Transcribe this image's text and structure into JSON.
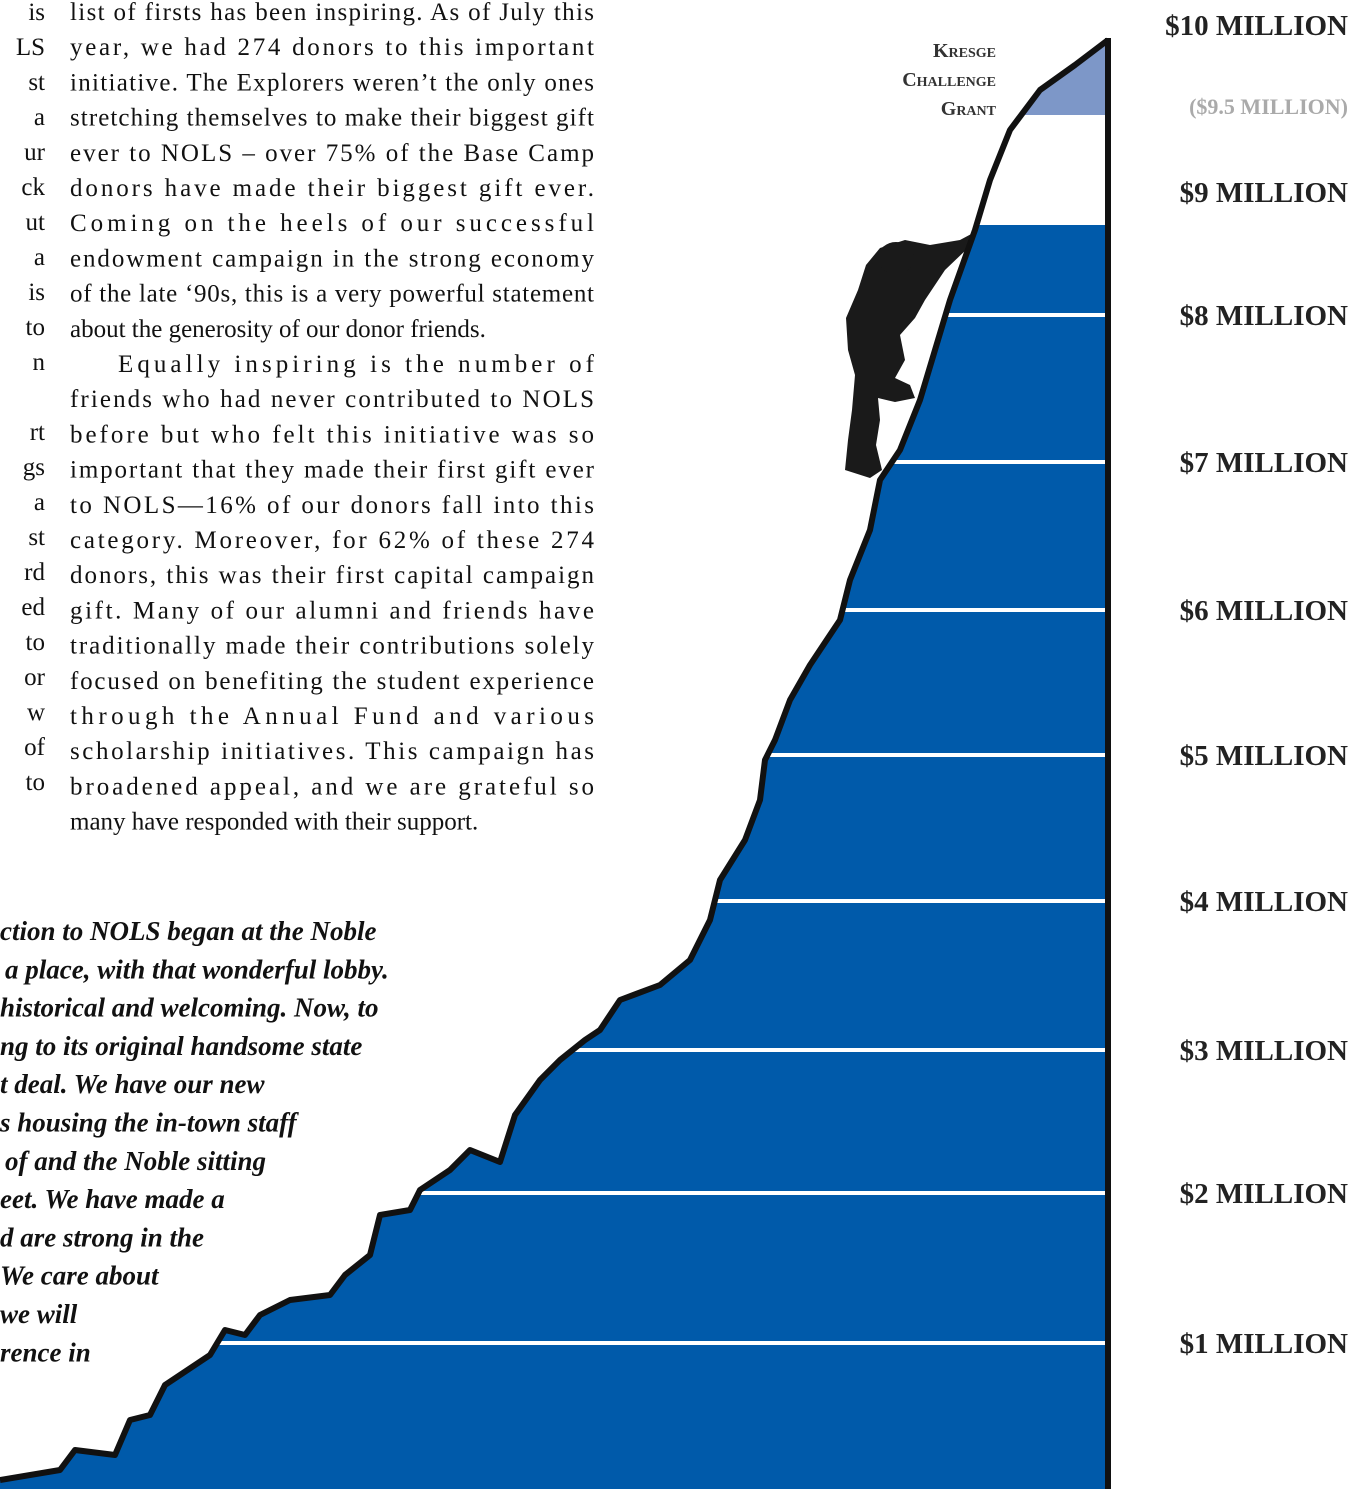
{
  "left_column_fragments": [
    "is",
    "LS",
    "st",
    "a",
    "ur",
    "ck",
    "ut",
    "a",
    "is",
    "to",
    "n",
    "rt",
    "gs",
    "a",
    "st",
    "rd",
    "ed",
    "to",
    "or",
    "w",
    "of",
    "to"
  ],
  "main_column": {
    "paragraphs": [
      [
        "list of firsts has been inspiring. As of July this",
        "year, we had 274 donors to this important",
        "initiative.  The Explorers weren’t the only ones",
        "stretching themselves to make their biggest gift",
        "ever to NOLS – over 75% of the Base Camp",
        "donors have made their biggest gift ever.",
        "Coming on the heels of our successful",
        "endowment campaign in the strong economy",
        "of the late ‘90s, this is a very powerful statement",
        "about the generosity of our donor friends."
      ],
      [
        "Equally inspiring is the number of",
        "friends who had never contributed to NOLS",
        "before but who felt this initiative was so",
        "important that they made their first gift ever",
        "to NOLS—16% of our donors fall into this",
        "category. Moreover, for 62% of these 274",
        "donors, this was their first capital campaign",
        "gift. Many of our alumni and friends have",
        "traditionally made their contributions solely",
        "focused on benefiting the student experience",
        "through the Annual Fund and various",
        "scholarship initiatives. This campaign has",
        "broadened appeal, and we are grateful so",
        "many have responded with their support."
      ]
    ]
  },
  "quote": {
    "lines": [
      "ction to NOLS began at the Noble",
      "a place, with that wonderful lobby.",
      "historical and welcoming. Now, to",
      "ng to its original handsome state",
      "t deal. We have our new",
      "s housing the in-town staff",
      "of and the Noble sitting",
      "eet. We have made a",
      "d are strong in the",
      "We care about",
      "we will",
      "rence in"
    ]
  },
  "graphic": {
    "grant_label": [
      "Kresge",
      "Challenge",
      "Grant"
    ],
    "goal_labels": [
      "$10 MILLION",
      "($9.5 MILLION)",
      "$9 MILLION",
      "$8 MILLION",
      "$7 MILLION",
      "$6 MILLION",
      "$5 MILLION",
      "$4 MILLION",
      "$3 MILLION",
      "$2 MILLION",
      "$1 MILLION"
    ]
  }
}
